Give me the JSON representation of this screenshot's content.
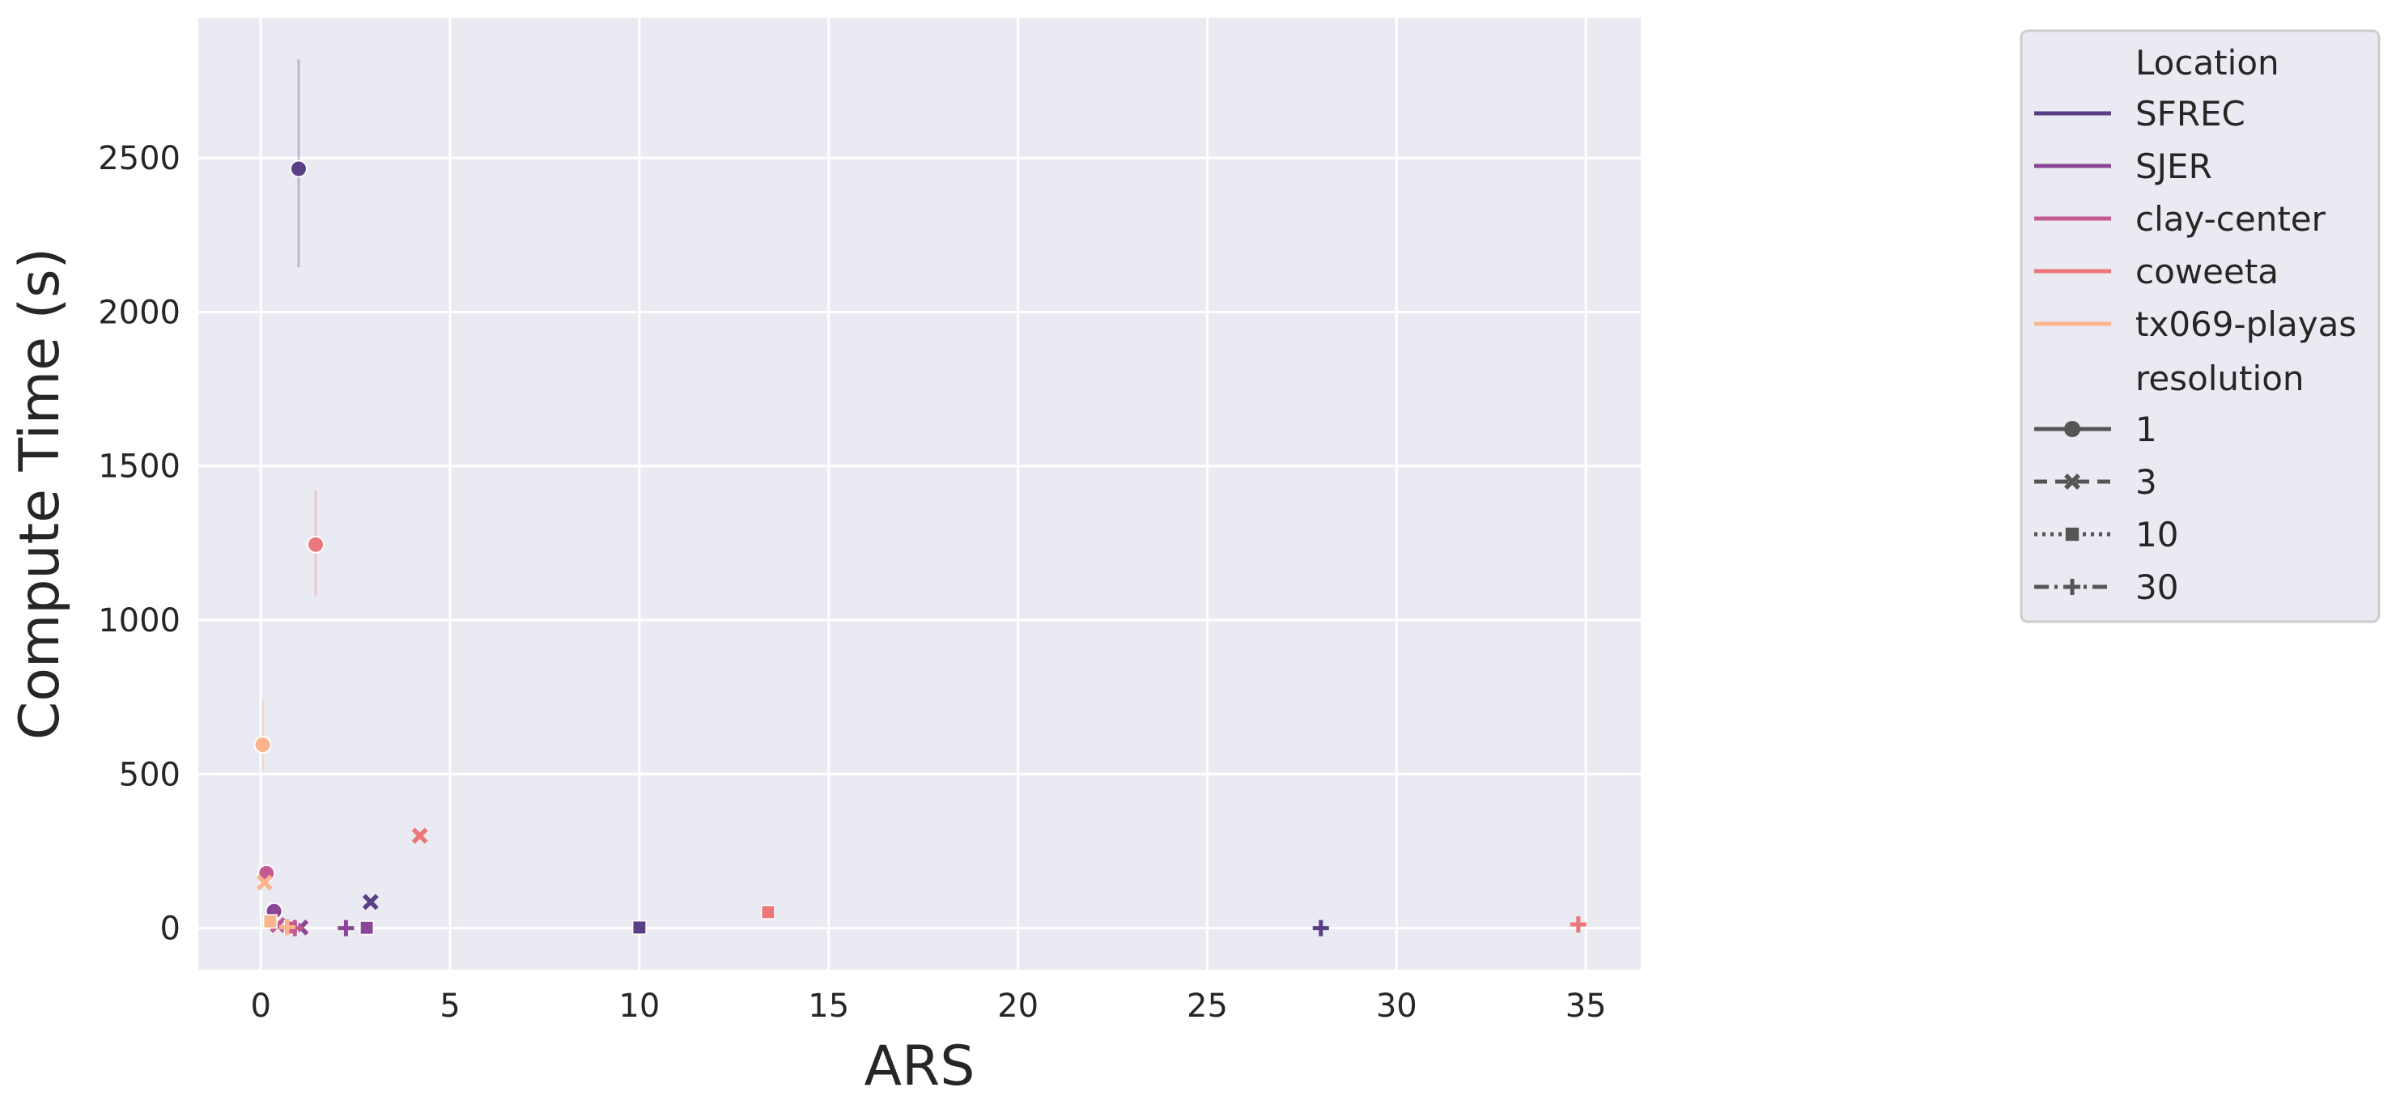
{
  "chart_data": {
    "type": "scatter",
    "xlabel": "ARS",
    "ylabel": "Compute Time (s)",
    "xlim": [
      -1.65,
      36.45
    ],
    "ylim": [
      -135,
      2955
    ],
    "x_ticks": [
      0,
      5,
      10,
      15,
      20,
      25,
      30,
      35
    ],
    "y_ticks": [
      0,
      500,
      1000,
      1500,
      2000,
      2500
    ],
    "grid": true,
    "legend_placement": "right, outside plot (upper)",
    "hue_title": "Location",
    "style_title": "resolution",
    "locations": [
      {
        "name": "SFREC",
        "color": "#5a3f87"
      },
      {
        "name": "SJER",
        "color": "#8b4596"
      },
      {
        "name": "clay-center",
        "color": "#c55a92"
      },
      {
        "name": "coweeta",
        "color": "#ec777a"
      },
      {
        "name": "tx069-playas",
        "color": "#fbb48b"
      }
    ],
    "resolutions": [
      {
        "name": "1",
        "marker": "circle",
        "dash": ""
      },
      {
        "name": "3",
        "marker": "x",
        "dash": "16 10"
      },
      {
        "name": "10",
        "marker": "square",
        "dash": "4 6"
      },
      {
        "name": "30",
        "marker": "plus",
        "dash": "18 7 4 7"
      }
    ],
    "points": [
      {
        "location": "SFREC",
        "resolution": "1",
        "x": 1.0,
        "y": 2465,
        "err_low": 2145,
        "err_high": 2820
      },
      {
        "location": "SFREC",
        "resolution": "3",
        "x": 2.9,
        "y": 85
      },
      {
        "location": "SFREC",
        "resolution": "10",
        "x": 10.0,
        "y": 2
      },
      {
        "location": "SFREC",
        "resolution": "30",
        "x": 28.0,
        "y": 0
      },
      {
        "location": "SJER",
        "resolution": "1",
        "x": 0.35,
        "y": 55
      },
      {
        "location": "SJER",
        "resolution": "3",
        "x": 1.05,
        "y": 2
      },
      {
        "location": "SJER",
        "resolution": "10",
        "x": 2.8,
        "y": 1
      },
      {
        "location": "SJER",
        "resolution": "30",
        "x": 2.25,
        "y": 0
      },
      {
        "location": "clay-center",
        "resolution": "1",
        "x": 0.15,
        "y": 178
      },
      {
        "location": "clay-center",
        "resolution": "3",
        "x": 0.45,
        "y": 10
      },
      {
        "location": "clay-center",
        "resolution": "10",
        "x": 0.8,
        "y": 2
      },
      {
        "location": "clay-center",
        "resolution": "30",
        "x": 0.9,
        "y": 0
      },
      {
        "location": "coweeta",
        "resolution": "1",
        "x": 1.45,
        "y": 1245,
        "err_low": 1080,
        "err_high": 1420
      },
      {
        "location": "coweeta",
        "resolution": "3",
        "x": 4.2,
        "y": 300
      },
      {
        "location": "coweeta",
        "resolution": "10",
        "x": 13.4,
        "y": 52
      },
      {
        "location": "coweeta",
        "resolution": "30",
        "x": 34.8,
        "y": 12
      },
      {
        "location": "tx069-playas",
        "resolution": "1",
        "x": 0.05,
        "y": 595,
        "err_low": 510,
        "err_high": 740
      },
      {
        "location": "tx069-playas",
        "resolution": "3",
        "x": 0.1,
        "y": 148
      },
      {
        "location": "tx069-playas",
        "resolution": "10",
        "x": 0.25,
        "y": 22
      },
      {
        "location": "tx069-playas",
        "resolution": "30",
        "x": 0.7,
        "y": 3
      }
    ]
  }
}
